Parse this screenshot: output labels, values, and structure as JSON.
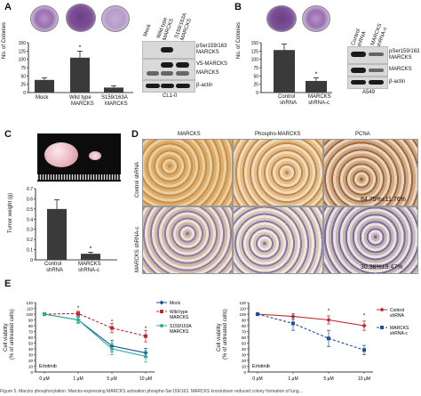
{
  "panels": {
    "A": {
      "label": "A",
      "ylabel": "No. of Colonies",
      "categories": [
        "Mock",
        "Wild type\nMARCKS",
        "S159/163A\nMARCKS"
      ],
      "cat1": "Mock",
      "cat2a": "Wild type",
      "cat2b": "MARCKS",
      "cat3a": "S159/163A",
      "cat3b": "MARCKS",
      "ticks": [
        "0",
        "25",
        "50",
        "75",
        "100",
        "125",
        "150"
      ],
      "star": "*",
      "blot_lanes": [
        "Mock",
        "Wild type MARCKS",
        "S159/163A MARCKS"
      ],
      "lane1": "Mock",
      "lane2": "Wild type MARCKS",
      "lane3": "S159/163A MARCKS",
      "blot_labels": [
        "pSer159/163 MARCKS",
        "V5-MARCKS",
        "MARCKS",
        "β-actin"
      ],
      "bl1a": "pSer159/163",
      "bl1b": "MARCKS",
      "bl2": "V5-MARCKS",
      "bl3": "MARCKS",
      "bl4": "β-actin",
      "cell_line": "CL1-0"
    },
    "B": {
      "label": "B",
      "ylabel": "No. of Colonies",
      "cat1a": "Control",
      "cat1b": "shRNA",
      "cat2a": "MARCKS",
      "cat2b": "shRNA-c",
      "ticks": [
        "0",
        "25",
        "50",
        "75",
        "100",
        "125",
        "150"
      ],
      "star": "*",
      "lane1": "Control shRNA",
      "lane2": "MARCKS shRNA-c",
      "bl1a": "pSer159/163",
      "bl1b": "MARCKS",
      "bl2": "MARCKS",
      "bl3": "β-actin",
      "cell_line": "A549"
    },
    "C": {
      "label": "C",
      "ylabel": "Tumor weight (g)",
      "cat1a": "Control",
      "cat1b": "shRNA",
      "cat2a": "MARCKS",
      "cat2b": "shRNA-c",
      "ticks": [
        "0",
        "0.1",
        "0.2",
        "0.3",
        "0.4",
        "0.5",
        "0.6",
        "0.7"
      ],
      "star": "*"
    },
    "D": {
      "label": "D",
      "cols": [
        "MARCKS",
        "Phospho-MARCKS",
        "PCNA"
      ],
      "rows": [
        "Control shRNA",
        "MARCKS shRNA-c"
      ],
      "pcna_control": "84.75%±11.76%",
      "pcna_shrna": "30.38%±9.47%"
    },
    "E": {
      "label": "E",
      "left": {
        "ylabel1": "Cell viability",
        "ylabel2": "(% of untreated cells)",
        "yticks": [
          "0",
          "10",
          "20",
          "30",
          "40",
          "50",
          "60",
          "70",
          "80",
          "90",
          "100",
          "110",
          "120"
        ],
        "xticks": [
          "0 μM",
          "1 μM",
          "5 μM",
          "10 μM"
        ],
        "drug": "Erlotinib",
        "legend": [
          "Mock",
          "Wild type",
          "MARCKS",
          "S159/163A",
          "MARCKS"
        ],
        "star": "*"
      },
      "right": {
        "ylabel1": "Cell viability",
        "ylabel2": "(% of untreated cells)",
        "yticks": [
          "0",
          "10",
          "20",
          "30",
          "40",
          "50",
          "60",
          "70",
          "80",
          "90",
          "100",
          "110",
          "120"
        ],
        "xticks": [
          "0 μM",
          "1 μM",
          "5 μM",
          "10 μM"
        ],
        "drug": "Erlotinib",
        "legend": [
          "Control",
          "shRNA",
          "MARCKS",
          "shRNA-c"
        ],
        "star": "*"
      }
    }
  },
  "chart_data": [
    {
      "type": "bar",
      "panel": "A",
      "categories": [
        "Mock",
        "Wild type MARCKS",
        "S159/163A MARCKS"
      ],
      "values": [
        38,
        105,
        15
      ],
      "errors": [
        6,
        20,
        5
      ],
      "ylabel": "No. of Colonies",
      "ylim": [
        0,
        150
      ]
    },
    {
      "type": "bar",
      "panel": "B",
      "categories": [
        "Control shRNA",
        "MARCKS shRNA-c"
      ],
      "values": [
        128,
        35
      ],
      "errors": [
        18,
        9
      ],
      "ylabel": "No. of Colonies",
      "ylim": [
        0,
        150
      ]
    },
    {
      "type": "bar",
      "panel": "C",
      "categories": [
        "Control shRNA",
        "MARCKS shRNA-c"
      ],
      "values": [
        0.5,
        0.06
      ],
      "errors": [
        0.09,
        0.015
      ],
      "ylabel": "Tumor weight (g)",
      "ylim": [
        0,
        0.7
      ]
    },
    {
      "type": "line",
      "panel": "E-left",
      "x": [
        "0 μM",
        "1 μM",
        "5 μM",
        "10 μM"
      ],
      "series": [
        {
          "name": "Mock",
          "color": "#1f4fa0",
          "values": [
            100,
            90,
            45,
            33
          ],
          "errors": [
            2,
            5,
            10,
            8
          ]
        },
        {
          "name": "Wild type MARCKS",
          "color": "#c0282d",
          "values": [
            100,
            101,
            76,
            62
          ],
          "errors": [
            2,
            4,
            8,
            10
          ]
        },
        {
          "name": "S159/163A MARCKS",
          "color": "#2bb39a",
          "values": [
            100,
            90,
            40,
            27
          ],
          "errors": [
            2,
            6,
            10,
            10
          ]
        }
      ],
      "ylabel": "Cell viability (% of untreated cells)",
      "ylim": [
        0,
        120
      ]
    },
    {
      "type": "line",
      "panel": "E-right",
      "x": [
        "0 μM",
        "1 μM",
        "5 μM",
        "10 μM"
      ],
      "series": [
        {
          "name": "Control shRNA",
          "color": "#c0282d",
          "values": [
            100,
            96,
            90,
            80
          ],
          "errors": [
            2,
            5,
            7,
            8
          ]
        },
        {
          "name": "MARCKS shRNA-c",
          "color": "#1f4fa0",
          "values": [
            100,
            84,
            58,
            38
          ],
          "errors": [
            2,
            12,
            14,
            8
          ]
        }
      ],
      "ylabel": "Cell viability (% of untreated cells)",
      "ylim": [
        0,
        120
      ]
    }
  ],
  "caption": "Figure 5. Marcks phosphorylation. Marcks-expressing MARCKS activation phospho-Ser159/163. MARCKS knockdown reduced colony formation of lung..."
}
